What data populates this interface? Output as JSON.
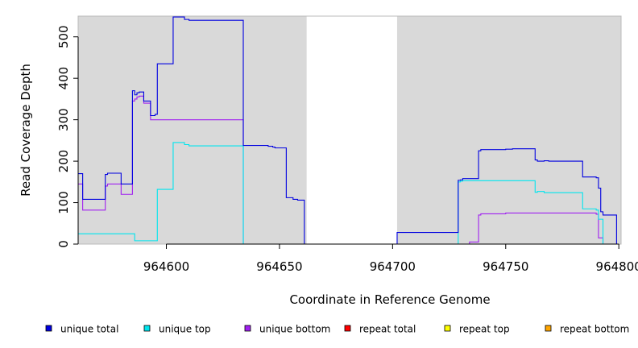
{
  "chart_data": {
    "type": "line",
    "xlabel": "Coordinate in Reference Genome",
    "ylabel": "Read Coverage Depth",
    "xlim": [
      964561,
      964801
    ],
    "ylim": [
      0,
      550
    ],
    "x_ticks": [
      "964600",
      "964650",
      "964700",
      "964750",
      "964800"
    ],
    "x_tick_values": [
      964600,
      964650,
      964700,
      964750,
      964800
    ],
    "y_ticks": [
      "0",
      "100",
      "200",
      "300",
      "400",
      "500"
    ],
    "y_tick_values": [
      0,
      100,
      200,
      300,
      400,
      500
    ],
    "shaded_regions": [
      [
        964561,
        964662
      ],
      [
        964702,
        964801
      ]
    ],
    "shade_color": "#d9d9d9",
    "legend_placement": "bottom",
    "series": [
      {
        "name": "unique total",
        "color": "#0000e0",
        "x": [
          964561,
          964563,
          964563,
          964573,
          964573,
          964574,
          964574,
          964576,
          964576,
          964580,
          964580,
          964585,
          964585,
          964586,
          964586,
          964587,
          964587,
          964588,
          964588,
          964590,
          964590,
          964593,
          964593,
          964595,
          964595,
          964596,
          964596,
          964603,
          964603,
          964608,
          964608,
          964610,
          964610,
          964634,
          964634,
          964645,
          964645,
          964647,
          964647,
          964648,
          964648,
          964653,
          964653,
          964656,
          964656,
          964658,
          964658,
          964661,
          964661,
          964702,
          964702,
          964729,
          964729,
          964730,
          964730,
          964731,
          964731,
          964738,
          964738,
          964739,
          964739,
          964750,
          964750,
          964753,
          964753,
          964763,
          964763,
          964764,
          964764,
          964767,
          964767,
          964769,
          964769,
          964784,
          964784,
          964790,
          964790,
          964791,
          964791,
          964792,
          964792,
          964793,
          964793,
          964799,
          964799,
          964801
        ],
        "y": [
          170,
          170,
          108,
          108,
          168,
          168,
          171,
          171,
          171,
          171,
          145,
          145,
          370,
          370,
          360,
          360,
          365,
          365,
          367,
          367,
          345,
          345,
          310,
          310,
          313,
          313,
          435,
          435,
          548,
          548,
          542,
          542,
          540,
          540,
          238,
          238,
          236,
          236,
          234,
          234,
          232,
          232,
          112,
          112,
          108,
          108,
          106,
          106,
          0,
          0,
          28,
          28,
          154,
          154,
          155,
          155,
          158,
          158,
          225,
          225,
          228,
          228,
          229,
          229,
          230,
          230,
          203,
          203,
          200,
          200,
          201,
          201,
          200,
          200,
          162,
          162,
          160,
          160,
          135,
          135,
          78,
          78,
          70,
          70,
          0,
          0
        ]
      },
      {
        "name": "unique top",
        "color": "#00e5ee",
        "x": [
          964561,
          964586,
          964586,
          964596,
          964596,
          964603,
          964603,
          964608,
          964608,
          964610,
          964610,
          964634,
          964634,
          964661,
          964661,
          964729,
          964729,
          964730,
          964730,
          964731,
          964731,
          964763,
          964763,
          964764,
          964764,
          964767,
          964767,
          964784,
          964784,
          964790,
          964790,
          964791,
          964791,
          964793,
          964793,
          964801
        ],
        "y": [
          25,
          25,
          8,
          8,
          132,
          132,
          245,
          245,
          240,
          240,
          237,
          237,
          0,
          0,
          0,
          0,
          150,
          150,
          152,
          152,
          153,
          153,
          125,
          125,
          127,
          127,
          124,
          124,
          85,
          85,
          82,
          82,
          60,
          60,
          0,
          0
        ]
      },
      {
        "name": "unique bottom",
        "color": "#a020f0",
        "x": [
          964561,
          964563,
          964563,
          964573,
          964573,
          964574,
          964574,
          964580,
          964580,
          964585,
          964585,
          964586,
          964586,
          964587,
          964587,
          964588,
          964588,
          964590,
          964590,
          964593,
          964593,
          964634,
          964634,
          964734,
          964734,
          964738,
          964738,
          964739,
          964739,
          964750,
          964750,
          964790,
          964790,
          964791,
          964791,
          964793,
          964793,
          964801
        ],
        "y": [
          145,
          145,
          82,
          82,
          140,
          140,
          145,
          145,
          120,
          120,
          345,
          345,
          350,
          350,
          355,
          355,
          357,
          357,
          340,
          340,
          300,
          300,
          0,
          0,
          5,
          5,
          70,
          70,
          73,
          73,
          75,
          75,
          72,
          72,
          15,
          15,
          0,
          0
        ]
      },
      {
        "name": "repeat total",
        "color": "#ff0000",
        "x": [
          964561,
          964801
        ],
        "y": [
          0,
          0
        ]
      },
      {
        "name": "repeat top",
        "color": "#ffff00",
        "x": [
          964561,
          964801
        ],
        "y": [
          0,
          0
        ]
      },
      {
        "name": "repeat bottom",
        "color": "#ffa500",
        "x": [
          964561,
          964801
        ],
        "y": [
          0,
          0
        ]
      }
    ]
  }
}
